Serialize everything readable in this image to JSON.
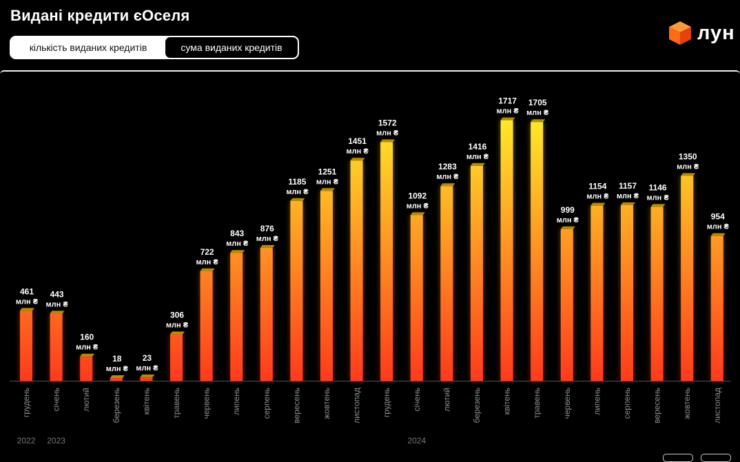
{
  "header": {
    "title": "Видані кредити єОселя",
    "toggle": {
      "option_count": "кількість виданих кредитів",
      "option_sum": "сума виданих кредитів",
      "selected": "сума виданих кредитів"
    },
    "logo_text": "лун",
    "logo_color": "#ff6a13"
  },
  "chart_data": {
    "type": "bar",
    "unit": "млн ₴",
    "categories": [
      "грудень",
      "січень",
      "лютий",
      "березень",
      "квітень",
      "травень",
      "червень",
      "липень",
      "серпень",
      "вересень",
      "жовтень",
      "листопад",
      "грудень",
      "січень",
      "лютий",
      "березень",
      "квітень",
      "травень",
      "червень",
      "липень",
      "серпень",
      "вересень",
      "жовтень",
      "листопад"
    ],
    "values": [
      461,
      443,
      160,
      18,
      23,
      306,
      722,
      843,
      876,
      1185,
      1251,
      1451,
      1572,
      1092,
      1283,
      1416,
      1717,
      1705,
      999,
      1154,
      1157,
      1146,
      1350,
      954
    ],
    "year_labels": [
      {
        "label": "2022",
        "start_index": 0
      },
      {
        "label": "2023",
        "start_index": 1
      },
      {
        "label": "2024",
        "start_index": 13
      }
    ],
    "ylim": [
      0,
      1800
    ],
    "gradient_colors": {
      "top": "#ffe82a",
      "bottom": "#ff3a1c",
      "cap": "#b98b00"
    }
  }
}
